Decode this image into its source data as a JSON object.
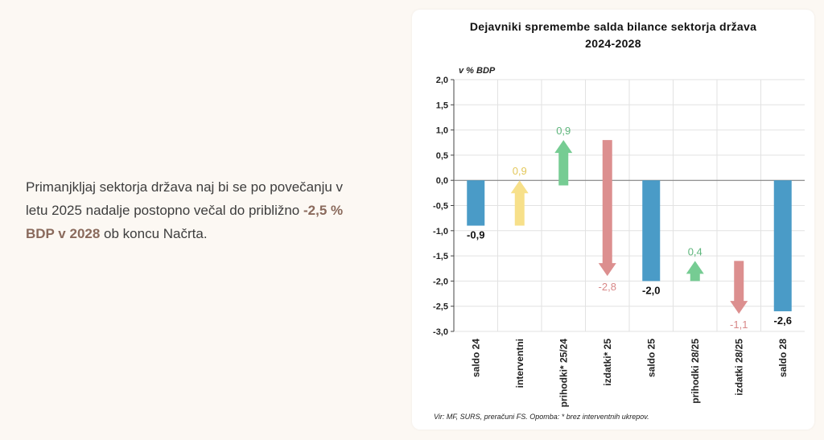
{
  "paragraph": {
    "before": "Primanjkljaj sektorja država naj bi se po povečanju v letu 2025 nadalje postopno večal do približno ",
    "highlight": "-2,5 % BDP v 2028",
    "after": " ob koncu Načrta."
  },
  "chart_data": {
    "type": "waterfall",
    "title_line1": "Dejavniki spremembe salda bilance sektorja država",
    "title_line2": "2024-2028",
    "unit_label": "v % BDP",
    "ylim": [
      -3.0,
      2.0
    ],
    "yticks": [
      "2,0",
      "1,5",
      "1,0",
      "0,5",
      "0,0",
      "-0,5",
      "-1,0",
      "-1,5",
      "-2,0",
      "-2,5",
      "-3,0"
    ],
    "categories": [
      "saldo 24",
      "interventni",
      "prihodki* 25/24",
      "izdatki* 25",
      "saldo 25",
      "prihodki 28/25",
      "izdatki 28/25",
      "saldo 28"
    ],
    "items": [
      {
        "kind": "bar",
        "from": 0,
        "to": -0.9,
        "label": "-0,9"
      },
      {
        "kind": "arrow",
        "from": -0.9,
        "to": 0.0,
        "label": "0,9",
        "color": "#f7e08a",
        "label_color": "#e3c75a"
      },
      {
        "kind": "arrow",
        "from": -0.1,
        "to": 0.8,
        "label": "0,9",
        "color": "#76cc93",
        "label_color": "#5db57b"
      },
      {
        "kind": "arrow",
        "from": 0.8,
        "to": -1.9,
        "label": "-2,8",
        "color": "#dc8f8f",
        "label_color": "#d88888"
      },
      {
        "kind": "bar",
        "from": 0,
        "to": -2.0,
        "label": "-2,0"
      },
      {
        "kind": "arrow",
        "from": -2.0,
        "to": -1.6,
        "label": "0,4",
        "color": "#76cc93",
        "label_color": "#5db57b"
      },
      {
        "kind": "arrow",
        "from": -1.6,
        "to": -2.65,
        "label": "-1,1",
        "color": "#dc8f8f",
        "label_color": "#d88888"
      },
      {
        "kind": "bar",
        "from": 0,
        "to": -2.6,
        "label": "-2,6"
      }
    ],
    "bar_color": "#4a9bc7",
    "grid": true
  },
  "source_note": "Vir: MF, SURS, preračuni FS. Opomba: * brez interventnih ukrepov."
}
